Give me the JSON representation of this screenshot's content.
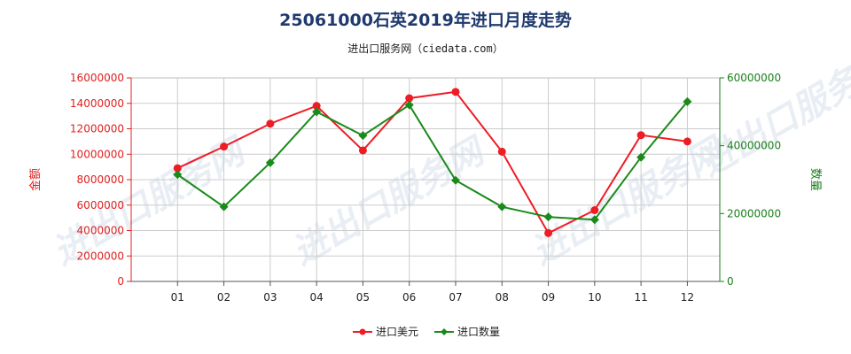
{
  "title": "25061000石英2019年进口月度走势",
  "subtitle": "进出口服务网（ciedata.com）",
  "watermark": "进出口服务网",
  "chart_data": {
    "type": "line",
    "categories": [
      "01",
      "02",
      "03",
      "04",
      "05",
      "06",
      "07",
      "08",
      "09",
      "10",
      "11",
      "12"
    ],
    "series": [
      {
        "name": "进口美元",
        "axis": "left",
        "color": "#ee1c25",
        "marker": "circle",
        "values": [
          8900000,
          10600000,
          12400000,
          13800000,
          10300000,
          14400000,
          14900000,
          10200000,
          3800000,
          5600000,
          11500000,
          11000000
        ]
      },
      {
        "name": "进口数量",
        "axis": "right",
        "color": "#1a8a1a",
        "marker": "diamond",
        "values": [
          31500000,
          22000000,
          35000000,
          50000000,
          43000000,
          52000000,
          29800000,
          22000000,
          19000000,
          18200000,
          36600000,
          53000000
        ]
      }
    ],
    "y_left": {
      "label": "金额",
      "ylim": [
        0,
        16000000
      ],
      "ticks": [
        "0",
        "2000000",
        "4000000",
        "6000000",
        "8000000",
        "10000000",
        "12000000",
        "14000000",
        "16000000"
      ]
    },
    "y_right": {
      "label": "数量",
      "ylim": [
        0,
        60000000
      ],
      "ticks": [
        "0",
        "20000000",
        "40000000",
        "60000000"
      ]
    },
    "grid": true,
    "legend_position": "bottom-center"
  }
}
